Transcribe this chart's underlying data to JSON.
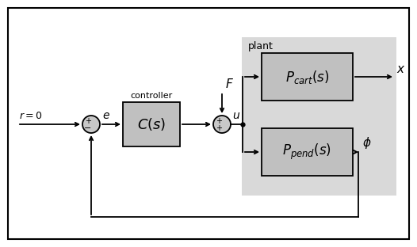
{
  "fig_width": 5.26,
  "fig_height": 3.12,
  "dpi": 100,
  "bg_color": "#ffffff",
  "plant_bg_color": "#d9d9d9",
  "block_face_color": "#c0c0c0",
  "block_edge_color": "#000000",
  "circle_face_color": "#c8c8c8",
  "circle_edge_color": "#000000",
  "plant_label": "plant",
  "controller_label": "controller",
  "block_C_label": "$C(s)$",
  "block_Pcart_label": "$P_{cart}(s)$",
  "block_Ppend_label": "$P_{pend}(s)$",
  "r_label": "$r = 0$",
  "e_label": "$e$",
  "u_label": "$u$",
  "F_label": "$F$",
  "x_label": "$x$",
  "phi_label": "$\\phi$"
}
